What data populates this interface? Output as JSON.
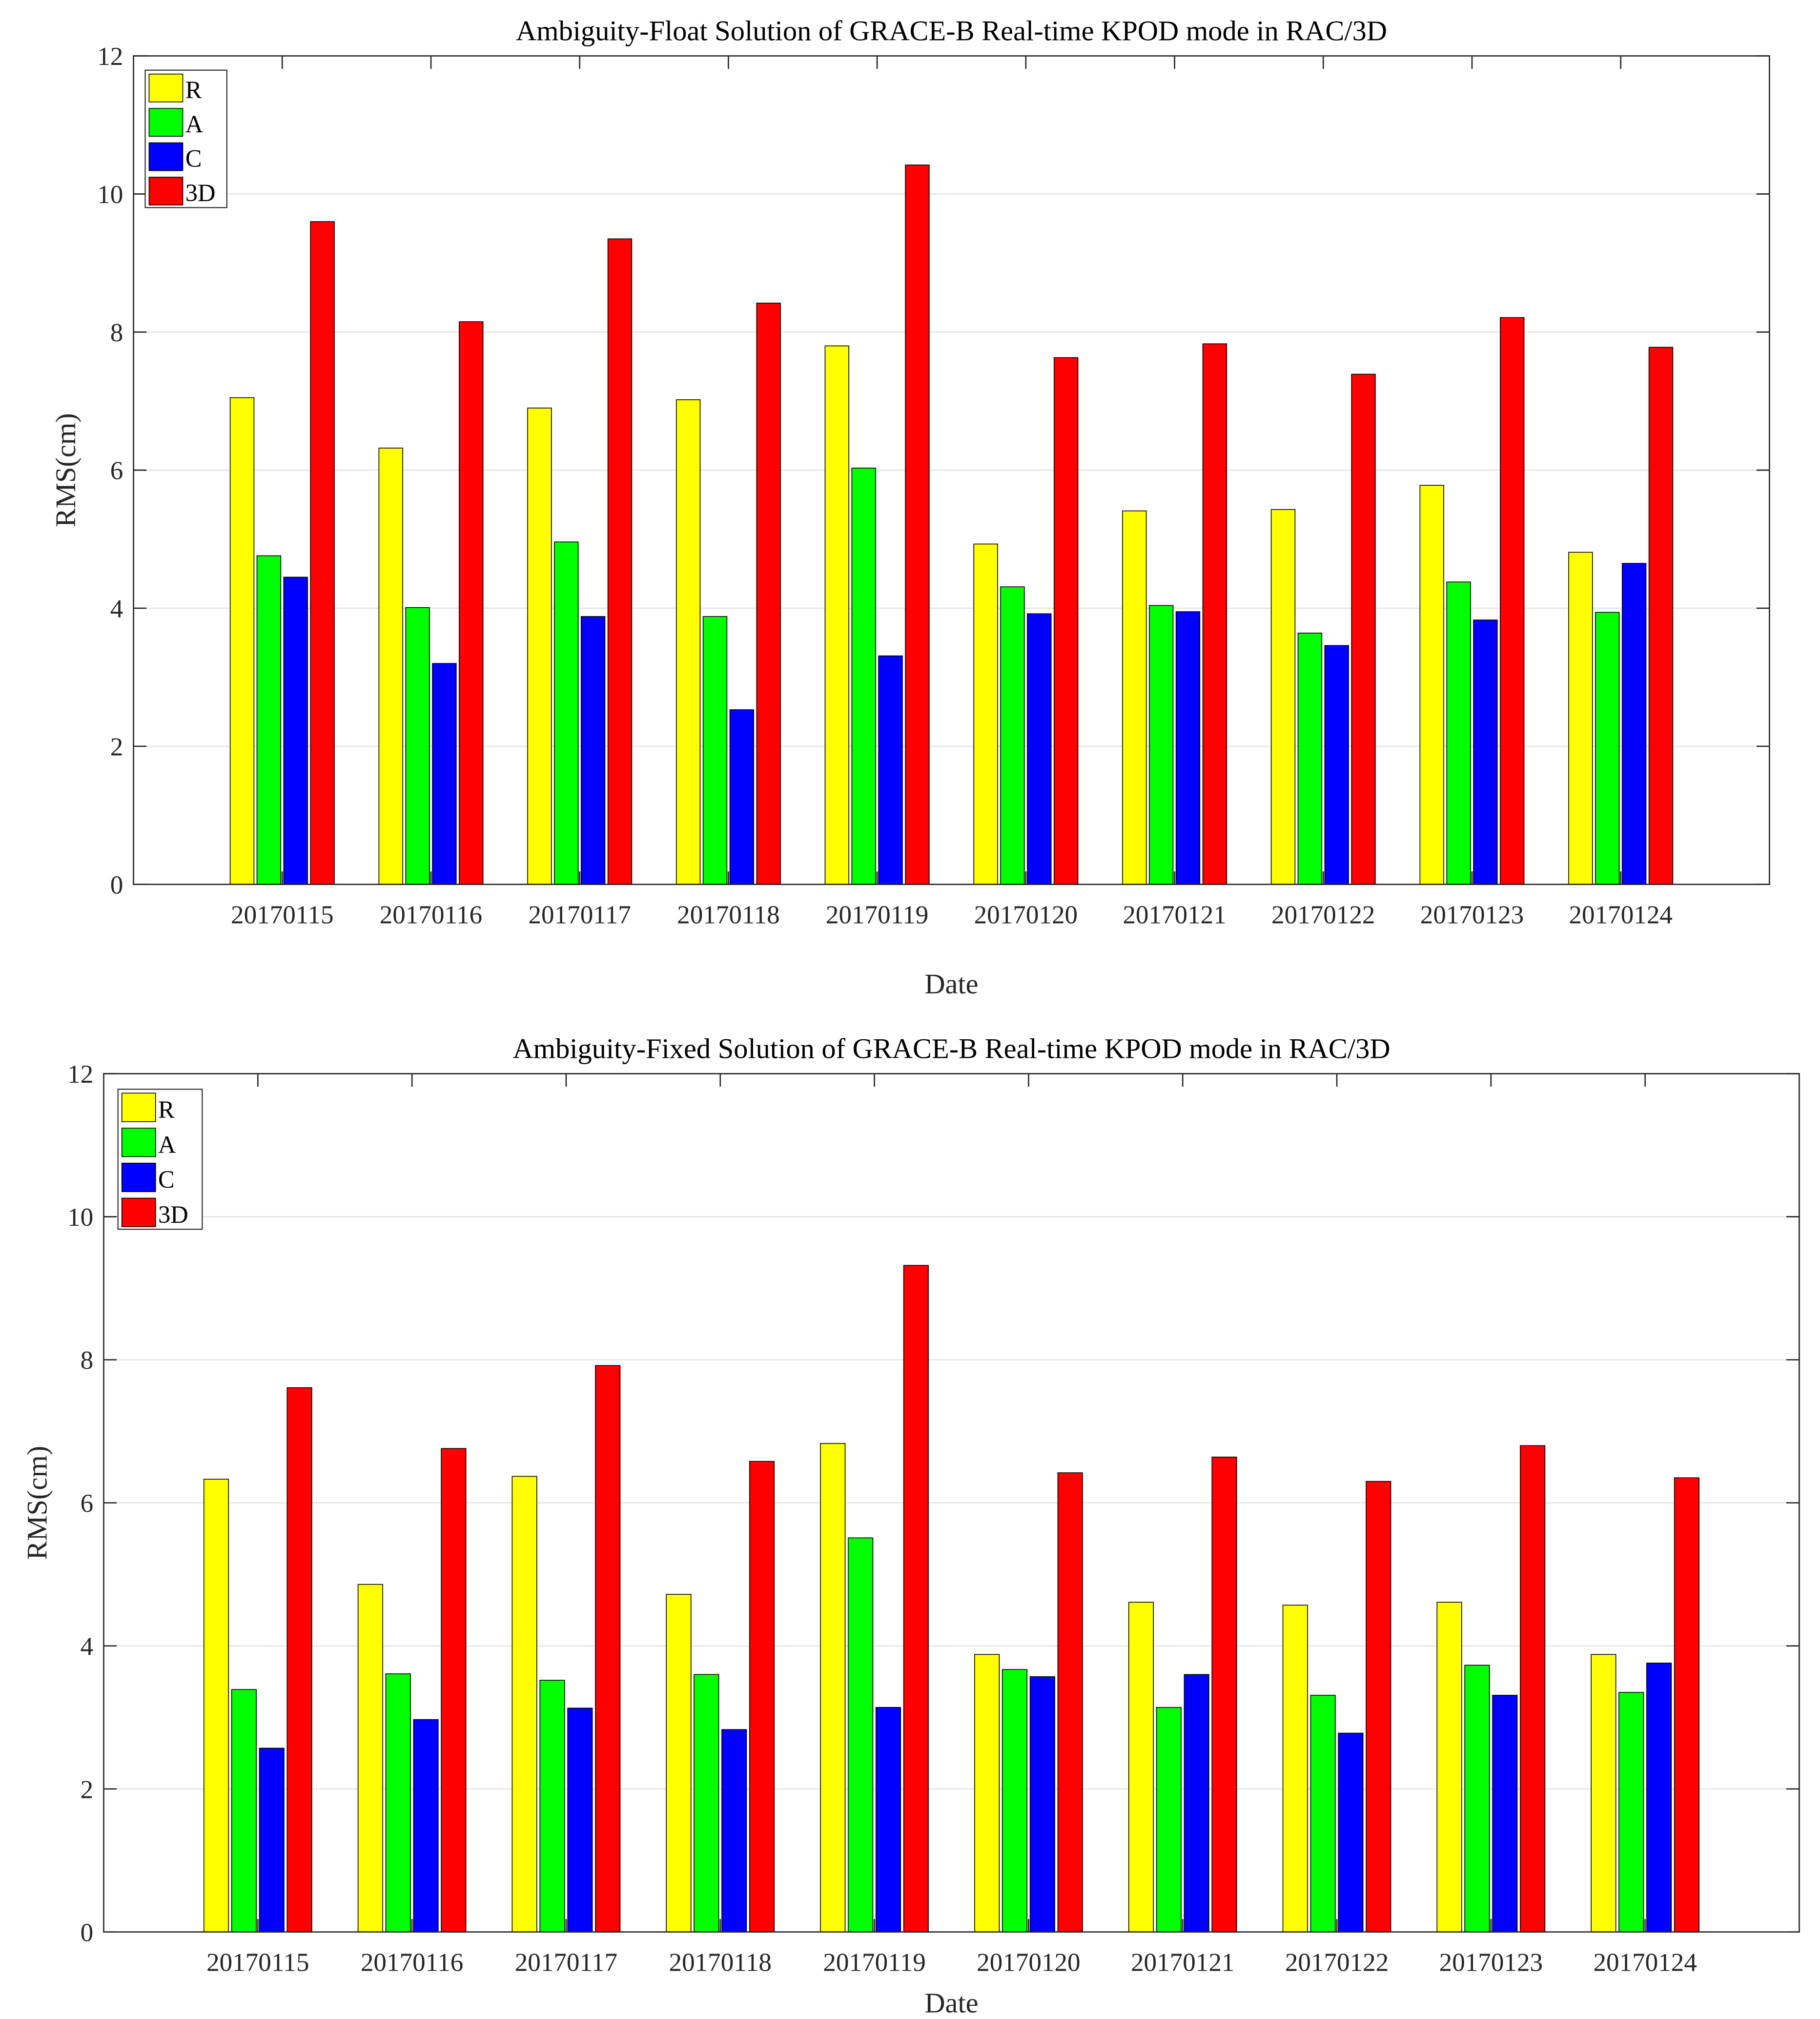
{
  "chart_data": [
    {
      "type": "bar",
      "title": "Ambiguity-Float Solution of GRACE-B Real-time KPOD mode in RAC/3D",
      "xlabel": "Date",
      "ylabel": "RMS(cm)",
      "ylim": [
        0,
        12
      ],
      "yticks": [
        0,
        2,
        4,
        6,
        8,
        10,
        12
      ],
      "grid": true,
      "legend_position": "top-left",
      "categories": [
        "20170115",
        "20170116",
        "20170117",
        "20170118",
        "20170119",
        "20170120",
        "20170121",
        "20170122",
        "20170123",
        "20170124"
      ],
      "series": [
        {
          "name": "R",
          "color": "#ffff00",
          "values": [
            7.05,
            6.32,
            6.9,
            7.02,
            7.8,
            4.93,
            5.41,
            5.43,
            5.78,
            4.81
          ]
        },
        {
          "name": "A",
          "color": "#00ff00",
          "values": [
            4.76,
            4.01,
            4.96,
            3.88,
            6.03,
            4.31,
            4.04,
            3.64,
            4.38,
            3.94
          ]
        },
        {
          "name": "C",
          "color": "#0000ff",
          "values": [
            4.45,
            3.2,
            3.88,
            2.53,
            3.31,
            3.92,
            3.95,
            3.46,
            3.83,
            4.65
          ]
        },
        {
          "name": "3D",
          "color": "#ff0000",
          "values": [
            9.6,
            8.15,
            9.35,
            8.42,
            10.42,
            7.63,
            7.83,
            7.39,
            8.21,
            7.78
          ]
        }
      ]
    },
    {
      "type": "bar",
      "title": "Ambiguity-Fixed Solution of GRACE-B Real-time KPOD mode in RAC/3D",
      "xlabel": "Date",
      "ylabel": "RMS(cm)",
      "ylim": [
        0,
        12
      ],
      "yticks": [
        0,
        2,
        4,
        6,
        8,
        10,
        12
      ],
      "grid": true,
      "legend_position": "top-left",
      "categories": [
        "20170115",
        "20170116",
        "20170117",
        "20170118",
        "20170119",
        "20170120",
        "20170121",
        "20170122",
        "20170123",
        "20170124"
      ],
      "series": [
        {
          "name": "R",
          "color": "#ffff00",
          "values": [
            6.33,
            4.86,
            6.37,
            4.72,
            6.83,
            3.88,
            4.61,
            4.57,
            4.61,
            3.88
          ]
        },
        {
          "name": "A",
          "color": "#00ff00",
          "values": [
            3.39,
            3.61,
            3.52,
            3.6,
            5.51,
            3.67,
            3.14,
            3.31,
            3.73,
            3.35
          ]
        },
        {
          "name": "C",
          "color": "#0000ff",
          "values": [
            2.57,
            2.97,
            3.13,
            2.83,
            3.14,
            3.57,
            3.6,
            2.78,
            3.31,
            3.76
          ]
        },
        {
          "name": "3D",
          "color": "#ff0000",
          "values": [
            7.61,
            6.76,
            7.92,
            6.58,
            9.32,
            6.42,
            6.64,
            6.3,
            6.8,
            6.35
          ]
        }
      ]
    }
  ]
}
